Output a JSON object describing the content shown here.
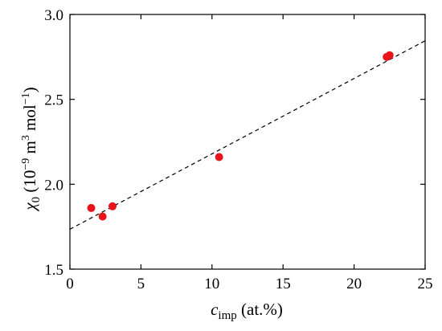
{
  "chart_data": {
    "type": "scatter",
    "xlabel": {
      "main": "c",
      "sub": "imp",
      "rest": " (at.%)"
    },
    "ylabel": {
      "main": "χ",
      "sub": "0",
      "rest1": " (10",
      "sup1": "−9",
      "rest2": " m",
      "sup2": "3",
      "rest3": " mol",
      "sup3": "−1",
      "rest4": ")"
    },
    "xlim": [
      0,
      25
    ],
    "ylim": [
      1.5,
      3.0
    ],
    "xticks": [
      0,
      5,
      10,
      15,
      20,
      25
    ],
    "yticks": [
      1.5,
      2.0,
      2.5,
      3.0
    ],
    "xtick_labels": [
      "0",
      "5",
      "10",
      "15",
      "20",
      "25"
    ],
    "ytick_labels": [
      "1.5",
      "2.0",
      "2.5",
      "3.0"
    ],
    "grid": false,
    "series": [
      {
        "color": "#e8141b",
        "points": [
          {
            "x": 1.5,
            "y": 1.86
          },
          {
            "x": 2.3,
            "y": 1.81
          },
          {
            "x": 3.0,
            "y": 1.87
          },
          {
            "x": 10.5,
            "y": 2.16
          },
          {
            "x": 22.3,
            "y": 2.75
          },
          {
            "x": 22.5,
            "y": 2.76
          }
        ]
      }
    ],
    "fit_line": {
      "style": "dashed",
      "color": "#000000",
      "x0": 0,
      "y0": 1.735,
      "x1": 25,
      "y1": 2.845
    }
  }
}
